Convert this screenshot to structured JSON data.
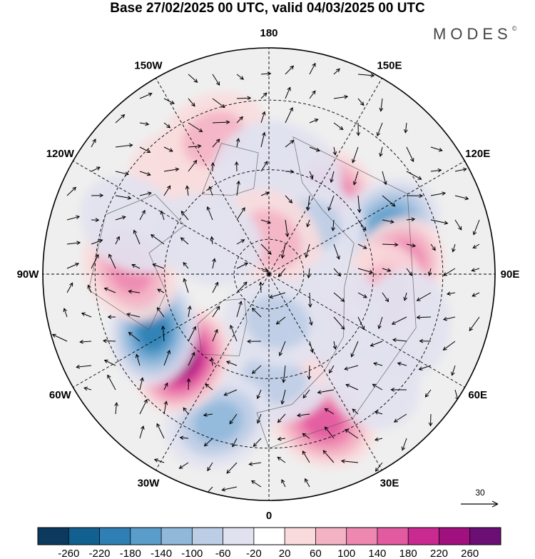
{
  "title": "Base 27/02/2025 00 UTC, valid 04/03/2025 00 UTC",
  "logo": {
    "text": "MODES",
    "mark": "©"
  },
  "longitude_labels": [
    {
      "name": "lon-0",
      "text": "0",
      "lon": 0
    },
    {
      "name": "lon-30e",
      "text": "30E",
      "lon": 30
    },
    {
      "name": "lon-60e",
      "text": "60E",
      "lon": 60
    },
    {
      "name": "lon-90e",
      "text": "90E",
      "lon": 90
    },
    {
      "name": "lon-120e",
      "text": "120E",
      "lon": 120
    },
    {
      "name": "lon-150e",
      "text": "150E",
      "lon": 150
    },
    {
      "name": "lon-180",
      "text": "180",
      "lon": 180
    },
    {
      "name": "lon-150w",
      "text": "150W",
      "lon": -150
    },
    {
      "name": "lon-120w",
      "text": "120W",
      "lon": -120
    },
    {
      "name": "lon-90w",
      "text": "90W",
      "lon": -90
    },
    {
      "name": "lon-60w",
      "text": "60W",
      "lon": -60
    },
    {
      "name": "lon-30w",
      "text": "30W",
      "lon": -30
    }
  ],
  "reference_vector": {
    "label": "30"
  },
  "colorbar": {
    "colors": [
      "#0b3a5e",
      "#12608f",
      "#2f7fb5",
      "#5a9dca",
      "#8fb8da",
      "#bccde6",
      "#e1e2f0",
      "#ffffff",
      "#fadbdd",
      "#f4b3c4",
      "#ee88b0",
      "#e25aa0",
      "#c92a8f",
      "#a0107e",
      "#6b0f75"
    ],
    "tick_labels": [
      "-260",
      "-220",
      "-180",
      "-140",
      "-100",
      "-60",
      "-20",
      "20",
      "60",
      "100",
      "140",
      "180",
      "220",
      "260"
    ]
  },
  "anomaly_centres": [
    {
      "lon": 147,
      "colat": 28,
      "value": 170
    },
    {
      "lon": 112,
      "colat": 37,
      "value": -175
    },
    {
      "lon": 92,
      "colat": 37,
      "value": 140
    },
    {
      "lon": 78,
      "colat": 33,
      "value": 70
    },
    {
      "lon": 25,
      "colat": 30,
      "value": 130
    },
    {
      "lon": 20,
      "colat": 45,
      "value": 150
    },
    {
      "lon": 3,
      "colat": 30,
      "value": -70
    },
    {
      "lon": -19,
      "colat": 45,
      "value": -110
    },
    {
      "lon": -45,
      "colat": 35,
      "value": 235
    },
    {
      "lon": -64,
      "colat": 37,
      "value": -190
    },
    {
      "lon": -92,
      "colat": 40,
      "value": 130
    },
    {
      "lon": -140,
      "colat": 38,
      "value": 50
    },
    {
      "lon": -158,
      "colat": 42,
      "value": 70
    },
    {
      "lon": -175,
      "colat": 30,
      "value": -40
    },
    {
      "lon": 168,
      "colat": 30,
      "value": -50
    },
    {
      "lon": 140,
      "colat": 18,
      "value": -70
    },
    {
      "lon": 175,
      "colat": 10,
      "value": 60
    },
    {
      "lon": 45,
      "colat": 25,
      "value": 80
    },
    {
      "lon": 60,
      "colat": 22,
      "value": -50
    },
    {
      "lon": -120,
      "colat": 20,
      "value": -30
    },
    {
      "lon": 10,
      "colat": 14,
      "value": -60
    },
    {
      "lon": -110,
      "colat": 42,
      "value": -40
    },
    {
      "lon": 70,
      "colat": 42,
      "value": -50
    },
    {
      "lon": 45,
      "colat": 42,
      "value": -30
    }
  ]
}
